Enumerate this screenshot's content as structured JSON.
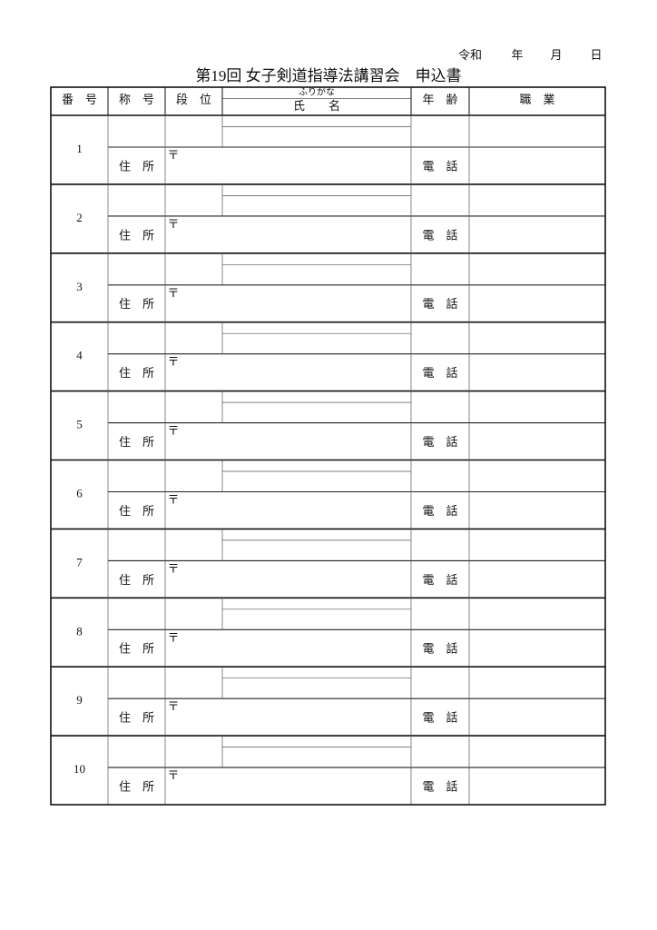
{
  "header": {
    "date_labels": [
      "令和",
      "年",
      "月",
      "日"
    ],
    "title": "第19回 女子剣道指導法講習会　申込書"
  },
  "table": {
    "headers": [
      "番　号",
      "称　号",
      "段　位",
      "氏　　名",
      "年　齢",
      "職　業"
    ],
    "furigana": "ふりがな",
    "rows": [
      {
        "number": 1,
        "address": "住　所",
        "postal": "〒",
        "phone": "電　話"
      },
      {
        "number": 2,
        "address": "住　所",
        "postal": "〒",
        "phone": "電　話"
      },
      {
        "number": 3,
        "address": "住　所",
        "postal": "〒",
        "phone": "電　話"
      },
      {
        "number": 4,
        "address": "住　所",
        "postal": "〒",
        "phone": "電　話"
      },
      {
        "number": 5,
        "address": "住　所",
        "postal": "〒",
        "phone": "電　話"
      },
      {
        "number": 6,
        "address": "住　所",
        "postal": "〒",
        "phone": "電　話"
      },
      {
        "number": 7,
        "address": "住　所",
        "postal": "〒",
        "phone": "電　話"
      },
      {
        "number": 8,
        "address": "住　所",
        "postal": "〒",
        "phone": "電　話"
      },
      {
        "number": 9,
        "address": "住　所",
        "postal": "〒",
        "phone": "電　話"
      },
      {
        "number": 10,
        "address": "住　所",
        "postal": "〒",
        "phone": "電　話"
      }
    ]
  }
}
